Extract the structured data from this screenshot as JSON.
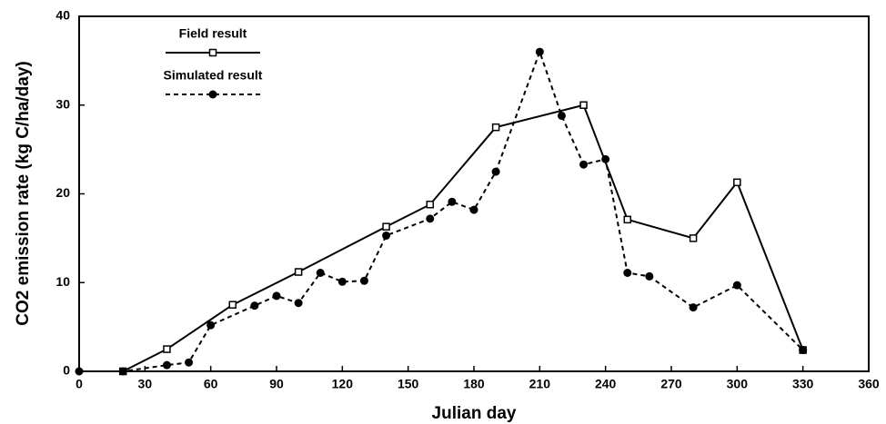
{
  "chart_data": {
    "type": "line",
    "x_label": "Julian day",
    "y_label": "CO2 emission rate (kg C/ha/day)",
    "xlim": [
      0,
      360
    ],
    "xticks": [
      0,
      30,
      60,
      90,
      120,
      150,
      180,
      210,
      240,
      270,
      300,
      330,
      360
    ],
    "ylim": [
      0,
      40
    ],
    "yticks": [
      0,
      10,
      20,
      30,
      40
    ],
    "legend_position": "upper left",
    "series": [
      {
        "name": "Field result",
        "color": "#000000",
        "line_style": "solid",
        "marker": "square",
        "x": [
          20,
          40,
          70,
          100,
          140,
          160,
          190,
          230,
          250,
          280,
          300,
          330
        ],
        "values": [
          0,
          2.5,
          7.5,
          11.2,
          16.3,
          18.8,
          27.5,
          30,
          17.1,
          15,
          21.3,
          2.4
        ]
      },
      {
        "name": "Simulated result",
        "color": "#000000",
        "line_style": "dashed",
        "marker": "circle",
        "x": [
          0,
          20,
          40,
          50,
          60,
          80,
          90,
          100,
          110,
          120,
          130,
          140,
          160,
          170,
          180,
          190,
          210,
          220,
          230,
          240,
          250,
          260,
          280,
          300,
          330
        ],
        "values": [
          0,
          0,
          0.7,
          1,
          5.2,
          7.4,
          8.5,
          7.7,
          11.1,
          10.1,
          10.2,
          15.3,
          17.2,
          19.1,
          18.2,
          22.5,
          36,
          28.8,
          23.3,
          23.9,
          11.1,
          10.7,
          7.2,
          9.7,
          2.4
        ]
      }
    ]
  }
}
